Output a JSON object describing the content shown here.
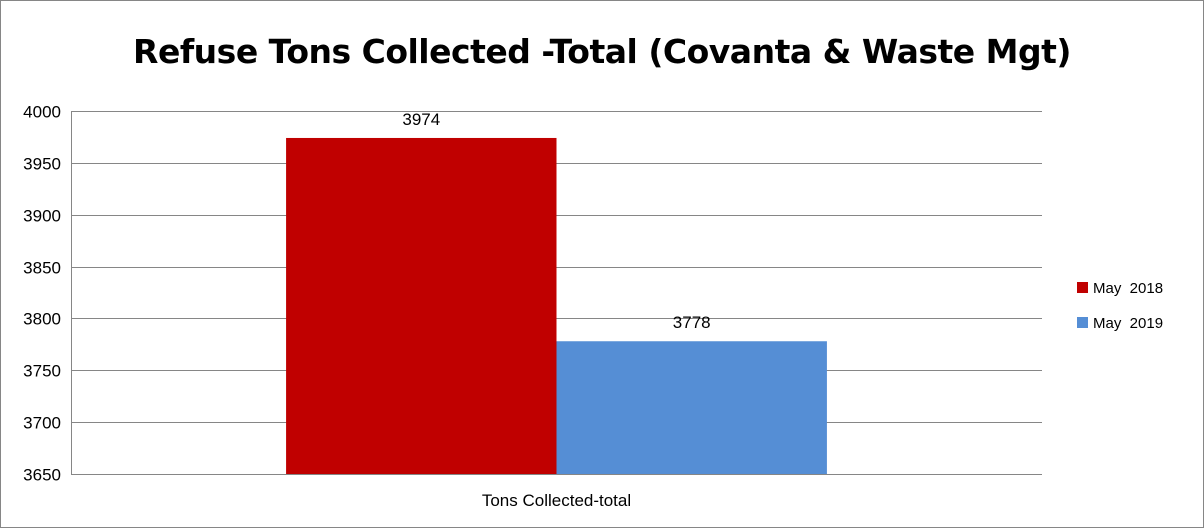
{
  "chart_data": {
    "type": "bar",
    "title": "Refuse Tons Collected -Total (Covanta & Waste Mgt)",
    "categories": [
      "Tons Collected-total"
    ],
    "series": [
      {
        "name": "May  2018",
        "values": [
          3974
        ],
        "color": "#C00000"
      },
      {
        "name": "May  2019",
        "values": [
          3778
        ],
        "color": "#558ED5"
      }
    ],
    "ylim": [
      3650,
      4000
    ],
    "yticks": [
      3650,
      3700,
      3750,
      3800,
      3850,
      3900,
      3950,
      4000
    ],
    "grid": true,
    "legend_position": "right",
    "xlabel": "",
    "ylabel": ""
  }
}
